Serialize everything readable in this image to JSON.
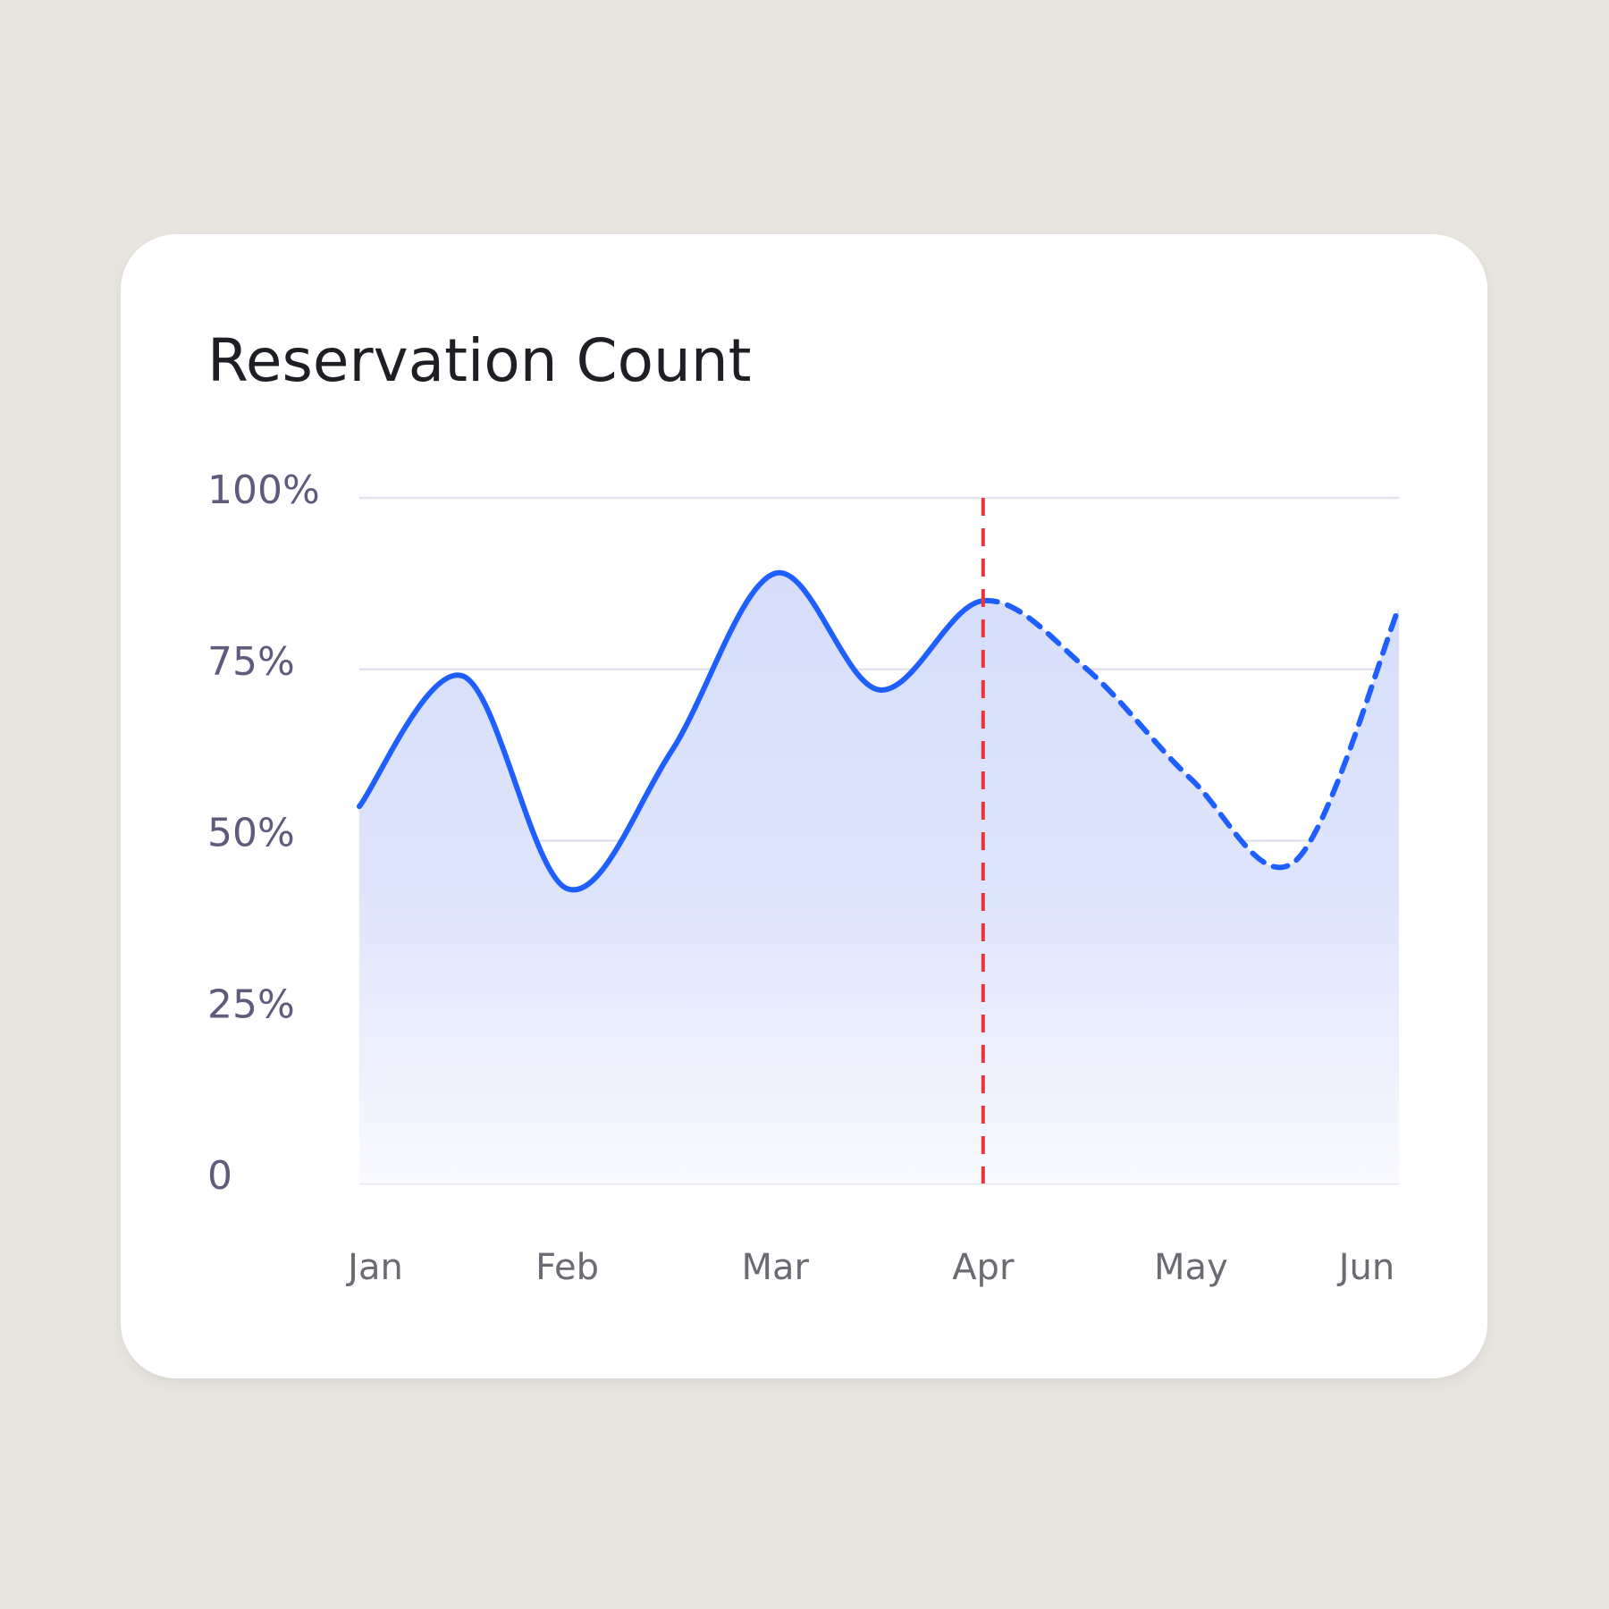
{
  "chart_data": {
    "type": "line",
    "title": "Reservation Count",
    "categories": [
      "Jan",
      null,
      "Feb",
      null,
      "Mar",
      null,
      "Apr",
      null,
      "May",
      null,
      "Jun"
    ],
    "values": [
      55,
      74,
      43,
      63,
      89,
      72,
      85,
      75,
      59,
      47,
      84
    ],
    "color": "#1f5eff",
    "forecast_from": "Apr",
    "forecast_line_color": "#e8343a",
    "ylim": [
      0,
      100
    ],
    "yticks": [
      0,
      {
        "value": 25,
        "label": "25%"
      },
      {
        "value": 50,
        "label": "50%"
      },
      {
        "value": 75,
        "label": "75%"
      },
      {
        "value": 100,
        "label": "100%"
      }
    ],
    "grid": true
  }
}
